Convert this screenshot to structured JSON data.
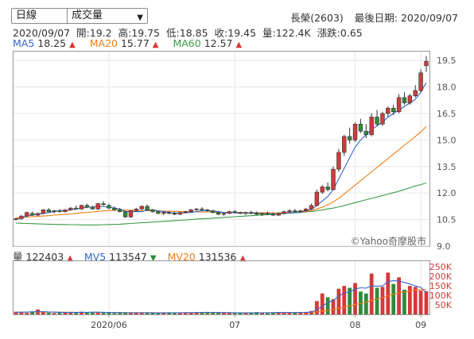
{
  "controls": {
    "period_select": "日線",
    "indicator_select": "成交量"
  },
  "header": {
    "stock": "長榮(2603)",
    "last_trade_label": "最後日期: 2020/09/07"
  },
  "ohlc": {
    "date": "2020/09/07",
    "open": "開:19.2",
    "high": "高:19.75",
    "low": "低:18.85",
    "close": "收:19.45",
    "volume": "量:122.4K",
    "change": "漲跌:0.65"
  },
  "ma_legend": [
    {
      "label": "MA5",
      "value": "18.25",
      "color": "#3366cc"
    },
    {
      "label": "MA20",
      "value": "15.77",
      "color": "#f07f16"
    },
    {
      "label": "MA60",
      "value": "12.57",
      "color": "#3a9a45"
    }
  ],
  "vol_legend": {
    "vol_label": "量",
    "vol_value": "122403",
    "mv5_label": "MV5",
    "mv5_value": "113547",
    "mv20_label": "MV20",
    "mv20_value": "131536"
  },
  "watermark": "©Yahoo奇摩股市",
  "colors": {
    "up": "#d33a3a",
    "down": "#2e8b3e",
    "ma5": "#3366cc",
    "ma20": "#f07f16",
    "ma60": "#3a9a45"
  },
  "chart_data": {
    "type": "candlestick",
    "price_axis": {
      "ticks": [
        "19.5",
        "18.0",
        "16.5",
        "15.0",
        "13.5",
        "12.0",
        "10.5",
        "9.0"
      ],
      "ylim": [
        9.0,
        20.0
      ]
    },
    "volume_axis": {
      "ticks": [
        "250K",
        "200K",
        "150K",
        "100K",
        "50K"
      ],
      "ylim": [
        0,
        280000
      ]
    },
    "x_labels": [
      "2020/06",
      "07",
      "08",
      "09"
    ],
    "candles": [
      [
        10.5,
        10.6,
        10.45,
        10.55
      ],
      [
        10.55,
        10.75,
        10.5,
        10.7
      ],
      [
        10.7,
        10.95,
        10.65,
        10.9
      ],
      [
        10.85,
        10.95,
        10.7,
        10.75
      ],
      [
        10.75,
        10.9,
        10.7,
        10.85
      ],
      [
        10.85,
        11.1,
        10.8,
        11.05
      ],
      [
        11.05,
        11.15,
        10.9,
        10.95
      ],
      [
        10.95,
        11.05,
        10.85,
        11.0
      ],
      [
        11.0,
        11.1,
        10.9,
        10.95
      ],
      [
        10.95,
        11.1,
        10.9,
        11.05
      ],
      [
        11.05,
        11.2,
        11.0,
        11.15
      ],
      [
        11.15,
        11.3,
        11.05,
        11.1
      ],
      [
        11.1,
        11.35,
        11.05,
        11.3
      ],
      [
        11.3,
        11.4,
        11.15,
        11.2
      ],
      [
        11.2,
        11.3,
        11.05,
        11.1
      ],
      [
        11.1,
        11.45,
        11.05,
        11.4
      ],
      [
        11.4,
        11.55,
        11.3,
        11.35
      ],
      [
        11.3,
        11.4,
        11.1,
        11.15
      ],
      [
        11.15,
        11.25,
        11.0,
        11.05
      ],
      [
        11.05,
        11.15,
        10.9,
        10.95
      ],
      [
        10.95,
        11.0,
        10.6,
        10.65
      ],
      [
        10.65,
        11.05,
        10.6,
        11.0
      ],
      [
        11.0,
        11.15,
        10.95,
        11.1
      ],
      [
        11.1,
        11.3,
        11.05,
        11.25
      ],
      [
        11.25,
        11.35,
        11.0,
        11.05
      ],
      [
        11.05,
        11.1,
        10.9,
        10.95
      ],
      [
        10.95,
        11.0,
        10.8,
        10.85
      ],
      [
        10.85,
        10.95,
        10.75,
        10.9
      ],
      [
        10.9,
        11.0,
        10.8,
        10.85
      ],
      [
        10.85,
        10.95,
        10.75,
        10.8
      ],
      [
        10.8,
        10.95,
        10.75,
        10.9
      ],
      [
        10.9,
        11.0,
        10.85,
        10.95
      ],
      [
        10.95,
        11.1,
        10.9,
        11.05
      ],
      [
        11.05,
        11.15,
        11.0,
        11.1
      ],
      [
        11.1,
        11.2,
        11.0,
        11.05
      ],
      [
        11.05,
        11.1,
        10.95,
        11.0
      ],
      [
        11.0,
        11.05,
        10.85,
        10.9
      ],
      [
        10.9,
        10.95,
        10.75,
        10.8
      ],
      [
        10.8,
        10.9,
        10.7,
        10.85
      ],
      [
        10.85,
        11.0,
        10.8,
        10.95
      ],
      [
        10.95,
        11.05,
        10.85,
        10.9
      ],
      [
        10.9,
        10.95,
        10.8,
        10.85
      ],
      [
        10.85,
        10.95,
        10.75,
        10.9
      ],
      [
        10.9,
        11.0,
        10.8,
        10.85
      ],
      [
        10.85,
        10.95,
        10.75,
        10.8
      ],
      [
        10.8,
        10.9,
        10.7,
        10.85
      ],
      [
        10.85,
        10.95,
        10.75,
        10.8
      ],
      [
        10.8,
        10.9,
        10.7,
        10.75
      ],
      [
        10.75,
        10.9,
        10.7,
        10.85
      ],
      [
        10.85,
        11.0,
        10.8,
        10.95
      ],
      [
        10.95,
        11.1,
        10.9,
        11.0
      ],
      [
        11.0,
        11.1,
        10.9,
        10.95
      ],
      [
        10.95,
        11.05,
        10.9,
        11.0
      ],
      [
        11.0,
        11.15,
        10.95,
        11.1
      ],
      [
        11.1,
        11.4,
        11.05,
        11.3
      ],
      [
        11.3,
        12.2,
        11.25,
        12.05
      ],
      [
        12.05,
        12.45,
        11.95,
        12.35
      ],
      [
        12.35,
        12.6,
        12.1,
        12.2
      ],
      [
        12.2,
        13.5,
        12.15,
        13.35
      ],
      [
        13.35,
        14.5,
        13.2,
        14.3
      ],
      [
        14.3,
        15.3,
        14.1,
        15.2
      ],
      [
        15.2,
        15.7,
        14.8,
        15.0
      ],
      [
        15.0,
        16.0,
        14.9,
        15.9
      ],
      [
        15.9,
        16.2,
        15.4,
        15.5
      ],
      [
        15.5,
        15.9,
        15.1,
        15.3
      ],
      [
        15.3,
        16.5,
        15.2,
        16.3
      ],
      [
        16.3,
        16.7,
        15.8,
        15.9
      ],
      [
        15.9,
        16.6,
        15.8,
        16.5
      ],
      [
        16.5,
        16.9,
        16.3,
        16.8
      ],
      [
        16.8,
        17.0,
        16.4,
        16.6
      ],
      [
        16.6,
        17.6,
        16.5,
        17.4
      ],
      [
        17.4,
        17.7,
        17.0,
        17.1
      ],
      [
        17.1,
        17.6,
        17.0,
        17.5
      ],
      [
        17.5,
        18.1,
        17.4,
        17.8
      ],
      [
        17.8,
        19.0,
        17.7,
        18.8
      ],
      [
        19.2,
        19.75,
        18.85,
        19.45
      ]
    ],
    "ma5": [
      10.5,
      10.6,
      10.7,
      10.75,
      10.8,
      10.85,
      10.9,
      10.95,
      11.0,
      11.0,
      11.05,
      11.1,
      11.15,
      11.2,
      11.2,
      11.25,
      11.25,
      11.2,
      11.15,
      11.1,
      10.95,
      10.95,
      10.95,
      10.95,
      11.05,
      11.05,
      11.0,
      10.95,
      10.9,
      10.87,
      10.87,
      10.88,
      10.9,
      10.95,
      11.0,
      11.0,
      10.98,
      10.95,
      10.9,
      10.9,
      10.88,
      10.87,
      10.88,
      10.88,
      10.86,
      10.84,
      10.84,
      10.82,
      10.82,
      10.85,
      10.88,
      10.9,
      10.95,
      11.0,
      11.08,
      11.3,
      11.55,
      11.8,
      12.2,
      12.8,
      13.4,
      14.0,
      14.6,
      15.0,
      15.3,
      15.6,
      15.8,
      16.0,
      16.3,
      16.5,
      16.7,
      16.9,
      17.1,
      17.3,
      17.7,
      18.25
    ],
    "ma20": [
      10.6,
      10.62,
      10.64,
      10.66,
      10.68,
      10.7,
      10.72,
      10.75,
      10.78,
      10.8,
      10.82,
      10.85,
      10.88,
      10.9,
      10.93,
      10.96,
      10.99,
      11.01,
      11.03,
      11.05,
      11.04,
      11.03,
      11.02,
      11.01,
      11.0,
      11.0,
      10.99,
      10.98,
      10.97,
      10.96,
      10.96,
      10.95,
      10.94,
      10.94,
      10.93,
      10.93,
      10.92,
      10.92,
      10.91,
      10.91,
      10.9,
      10.9,
      10.89,
      10.89,
      10.89,
      10.88,
      10.88,
      10.88,
      10.88,
      10.89,
      10.9,
      10.91,
      10.93,
      10.96,
      11.0,
      11.1,
      11.2,
      11.35,
      11.5,
      11.7,
      11.95,
      12.2,
      12.45,
      12.7,
      12.95,
      13.2,
      13.45,
      13.7,
      13.95,
      14.2,
      14.45,
      14.7,
      14.95,
      15.2,
      15.45,
      15.77
    ],
    "ma60": [
      10.3,
      10.29,
      10.28,
      10.27,
      10.26,
      10.25,
      10.24,
      10.23,
      10.22,
      10.22,
      10.21,
      10.21,
      10.2,
      10.2,
      10.2,
      10.2,
      10.21,
      10.22,
      10.23,
      10.24,
      10.26,
      10.28,
      10.3,
      10.32,
      10.34,
      10.36,
      10.38,
      10.4,
      10.42,
      10.44,
      10.46,
      10.48,
      10.5,
      10.52,
      10.54,
      10.56,
      10.58,
      10.6,
      10.62,
      10.64,
      10.66,
      10.68,
      10.7,
      10.72,
      10.74,
      10.76,
      10.78,
      10.8,
      10.82,
      10.84,
      10.86,
      10.88,
      10.9,
      10.93,
      10.96,
      11.0,
      11.05,
      11.1,
      11.15,
      11.22,
      11.3,
      11.38,
      11.46,
      11.54,
      11.62,
      11.7,
      11.78,
      11.86,
      11.94,
      12.02,
      12.1,
      12.2,
      12.3,
      12.4,
      12.48,
      12.57
    ],
    "volumes": [
      14000,
      10000,
      8000,
      16000,
      26000,
      12000,
      9000,
      7000,
      8000,
      11000,
      9000,
      12000,
      14000,
      10000,
      12000,
      11000,
      8000,
      10000,
      6000,
      9000,
      7000,
      8000,
      10000,
      9000,
      7000,
      8000,
      6000,
      9000,
      11000,
      8000,
      9000,
      10000,
      8000,
      11000,
      12000,
      13000,
      9000,
      8000,
      7000,
      9000,
      8000,
      6000,
      7000,
      8000,
      12000,
      9000,
      7000,
      10000,
      12000,
      10000,
      8000,
      9000,
      11000,
      13000,
      18000,
      70000,
      110000,
      90000,
      80000,
      135000,
      150000,
      140000,
      165000,
      120000,
      110000,
      215000,
      140000,
      145000,
      220000,
      160000,
      195000,
      130000,
      150000,
      145000,
      125000,
      122403
    ],
    "mv5": [
      11000,
      11500,
      12000,
      13000,
      14000,
      14500,
      13000,
      12000,
      11000,
      10000,
      9500,
      10000,
      11000,
      11000,
      11500,
      11500,
      11000,
      10500,
      9500,
      9000,
      8500,
      8000,
      8500,
      8500,
      8500,
      8000,
      7500,
      8000,
      8500,
      8500,
      8500,
      9000,
      9000,
      9500,
      10000,
      10500,
      10500,
      10000,
      9500,
      9000,
      8500,
      8000,
      7500,
      7500,
      8500,
      8500,
      8500,
      9000,
      10000,
      10000,
      9500,
      9500,
      10000,
      10500,
      11500,
      24000,
      44000,
      62000,
      73000,
      97000,
      113000,
      118000,
      134000,
      140000,
      138000,
      150000,
      148000,
      150000,
      172000,
      178000,
      175000,
      168000,
      160000,
      150000,
      142000,
      113547
    ],
    "mv20": [
      12000,
      12000,
      12200,
      12400,
      12500,
      12300,
      12000,
      11800,
      11600,
      11400,
      11200,
      11000,
      10800,
      10600,
      10500,
      10400,
      10300,
      10200,
      10000,
      9800,
      9600,
      9400,
      9300,
      9200,
      9100,
      9000,
      8900,
      8800,
      8800,
      8800,
      8700,
      8700,
      8700,
      8800,
      8900,
      9000,
      9000,
      9000,
      8900,
      8900,
      8800,
      8700,
      8700,
      8600,
      8600,
      8600,
      8700,
      8800,
      8900,
      9000,
      9100,
      9200,
      9400,
      9600,
      10000,
      13000,
      17000,
      21000,
      25000,
      31000,
      38000,
      45000,
      52000,
      58000,
      64000,
      74000,
      81000,
      88000,
      98000,
      106000,
      114000,
      118000,
      124000,
      128000,
      130000,
      131536
    ]
  }
}
